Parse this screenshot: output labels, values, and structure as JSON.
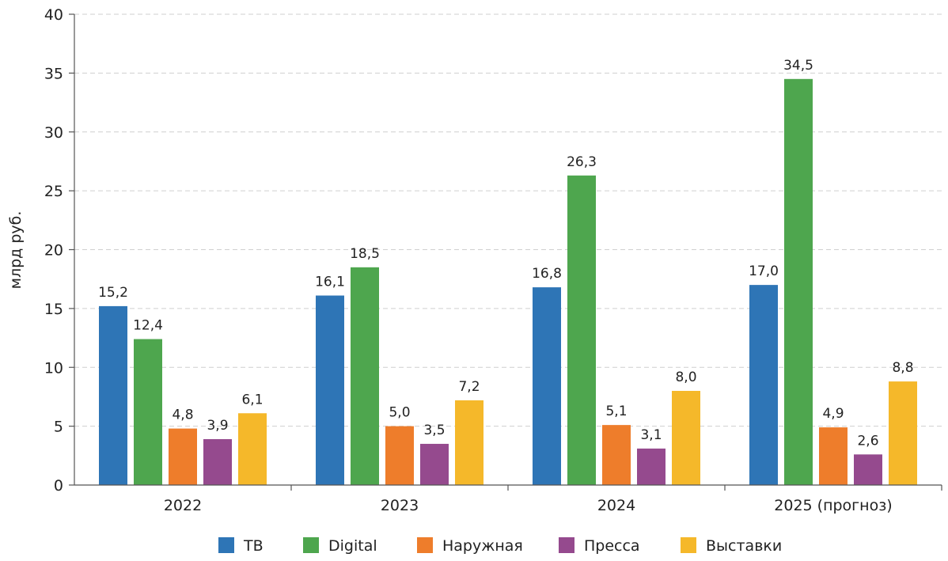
{
  "chart_data": {
    "type": "bar",
    "ylabel": "млрд руб.",
    "xlabel": "",
    "ylim": [
      0,
      40
    ],
    "yticks": [
      "0",
      "5",
      "10",
      "15",
      "20",
      "25",
      "30",
      "35",
      "40"
    ],
    "grid": true,
    "legend_position": "bottom",
    "categories": [
      "2022",
      "2023",
      "2024",
      "2025 (прогноз)"
    ],
    "series": [
      {
        "name": "ТВ",
        "color": "#2e75b6",
        "values": [
          15.2,
          16.1,
          16.8,
          17.0
        ],
        "labels": [
          "15,2",
          "16,1",
          "16,8",
          "17,0"
        ]
      },
      {
        "name": "Digital",
        "color": "#4ea64e",
        "values": [
          12.4,
          18.5,
          26.3,
          34.5
        ],
        "labels": [
          "12,4",
          "18,5",
          "26,3",
          "34,5"
        ]
      },
      {
        "name": "Наружная",
        "color": "#ee7d2b",
        "values": [
          4.8,
          5.0,
          5.1,
          4.9
        ],
        "labels": [
          "4,8",
          "5,0",
          "5,1",
          "4,9"
        ]
      },
      {
        "name": "Пресса",
        "color": "#954a8e",
        "values": [
          3.9,
          3.5,
          3.1,
          2.6
        ],
        "labels": [
          "3,9",
          "3,5",
          "3,1",
          "2,6"
        ]
      },
      {
        "name": "Выставки",
        "color": "#f5b82a",
        "values": [
          6.1,
          7.2,
          8.0,
          8.8
        ],
        "labels": [
          "6,1",
          "7,2",
          "8,0",
          "8,8"
        ]
      }
    ]
  }
}
